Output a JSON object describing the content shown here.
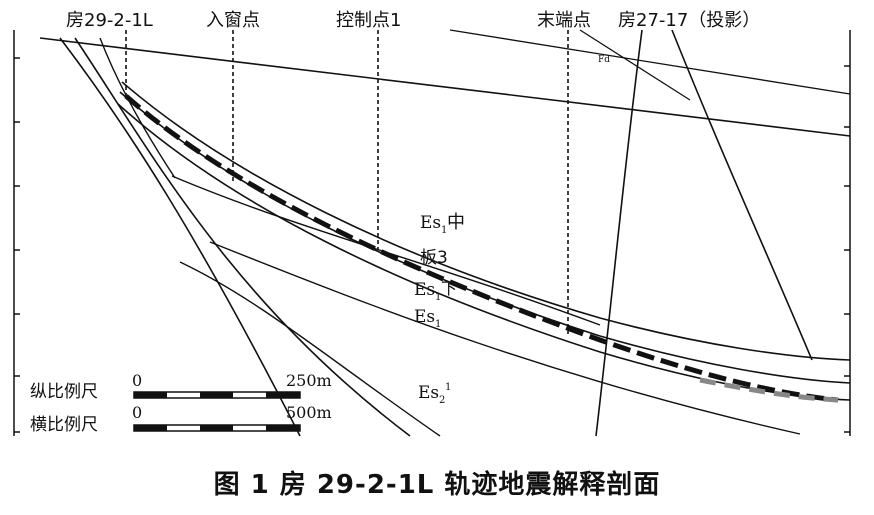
{
  "labels": {
    "well": "房29-2-1L",
    "entry": "入窗点",
    "control": "控制点1",
    "end": "末端点",
    "proj_well": "房27-17（投影）",
    "fd": "Fd",
    "es1_mid_base": "Es",
    "es1_mid_sub": "1",
    "es1_mid_suffix": "中",
    "ban3": "板3",
    "es1_low_base": "Es",
    "es1_low_sub": "1",
    "es1_low_suffix": "下",
    "es1_base": "Es",
    "es1_sub": "1",
    "es2_base": "Es",
    "es2_sub": "2",
    "es2_sup": "1"
  },
  "scale": {
    "vertical_label": "纵比例尺",
    "vertical_start": "0",
    "vertical_end": "250m",
    "horizontal_label": "横比例尺",
    "horizontal_start": "0",
    "horizontal_end": "500m"
  },
  "caption": "图 1    房 29-2-1L 轨迹地震解释剖面"
}
